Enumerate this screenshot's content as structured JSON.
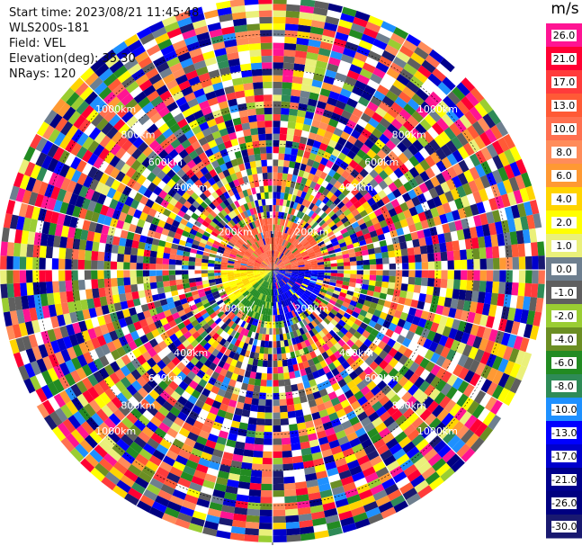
{
  "info": {
    "start_time": "Start time: 2023/08/21 11:45:48",
    "instrument": "WLS200s-181",
    "field": "Field: VEL",
    "elevation": "Elevation(deg): 35.30",
    "nrays": "NRays: 120"
  },
  "colorbar": {
    "unit": "m/s",
    "labels": [
      "26.0",
      "21.0",
      "17.0",
      "13.0",
      "10.0",
      "8.0",
      "6.0",
      "4.0",
      "2.0",
      "1.0",
      "0.0",
      "-1.0",
      "-2.0",
      "-4.0",
      "-6.0",
      "-8.0",
      "-10.0",
      "-13.0",
      "-17.0",
      "-21.0",
      "-26.0",
      "-30.0"
    ],
    "colors": [
      "#ff1493",
      "#ff0033",
      "#ff3b3b",
      "#ff5a36",
      "#ff7050",
      "#ff8c5a",
      "#ff9933",
      "#ffd400",
      "#ffff00",
      "#eaf07a",
      "#6e7f8f",
      "#5f5f5f",
      "#9acd32",
      "#6b8e23",
      "#228b22",
      "#2e8b57",
      "#1e90ff",
      "#0000ff",
      "#0000cd",
      "#00008b",
      "#000080",
      "#191970"
    ]
  },
  "range_rings": {
    "labels": [
      "200km",
      "400km",
      "600km",
      "800km",
      "1000km"
    ]
  }
}
